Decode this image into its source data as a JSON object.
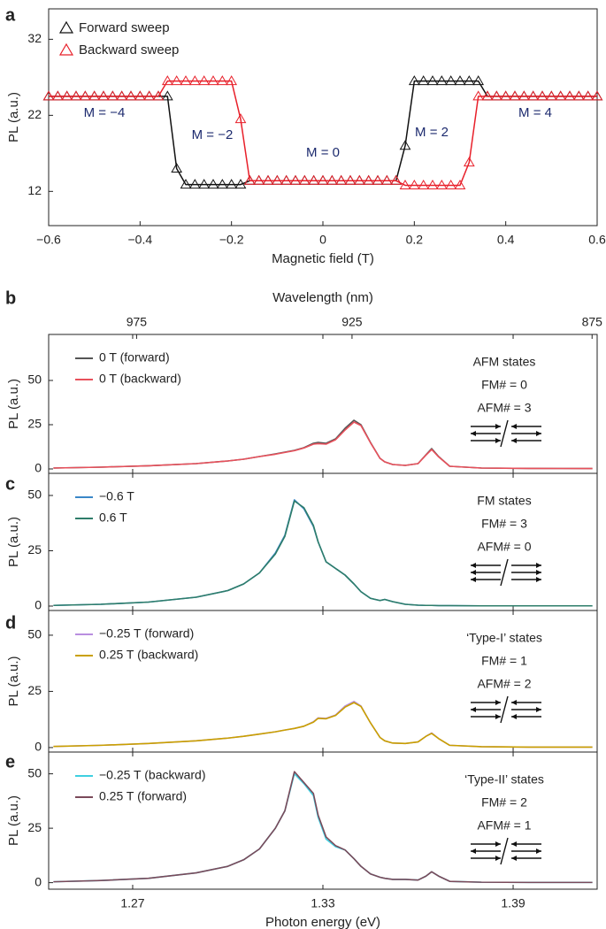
{
  "chart_data": [
    {
      "type": "line",
      "label": "a",
      "markers": "triangle",
      "xlabel": "Magnetic field (T)",
      "ylabel": "PL (a.u.)",
      "xlim": [
        -0.6,
        0.6
      ],
      "ylim": [
        7.5,
        36
      ],
      "xticks": [
        {
          "value": -0.6,
          "label": "−0.6"
        },
        {
          "value": -0.4,
          "label": "−0.4"
        },
        {
          "value": -0.2,
          "label": "−0.2"
        },
        0,
        0.2,
        0.4,
        0.6
      ],
      "yticks": [
        12,
        22,
        32
      ],
      "annotations": [
        "M = −4",
        "M = −2",
        "M = 0",
        "M = 2",
        "M = 4"
      ],
      "x": [
        -0.6,
        -0.58,
        -0.56,
        -0.54,
        -0.52,
        -0.5,
        -0.48,
        -0.46,
        -0.44,
        -0.42,
        -0.4,
        -0.38,
        -0.36,
        -0.34,
        -0.32,
        -0.3,
        -0.28,
        -0.26,
        -0.24,
        -0.22,
        -0.2,
        -0.18,
        -0.16,
        -0.14,
        -0.12,
        -0.1,
        -0.08,
        -0.06,
        -0.04,
        -0.02,
        0,
        0.02,
        0.04,
        0.06,
        0.08,
        0.1,
        0.12,
        0.14,
        0.16,
        0.18,
        0.2,
        0.22,
        0.24,
        0.26,
        0.28,
        0.3,
        0.32,
        0.34,
        0.36,
        0.38,
        0.4,
        0.42,
        0.44,
        0.46,
        0.48,
        0.5,
        0.52,
        0.54,
        0.56,
        0.58,
        0.6
      ],
      "series": [
        {
          "name": "Forward sweep",
          "color": "#111111",
          "values": [
            24.5,
            24.5,
            24.5,
            24.5,
            24.5,
            24.5,
            24.5,
            24.5,
            24.5,
            24.5,
            24.5,
            24.5,
            24.5,
            24.5,
            15,
            12.9,
            12.9,
            12.9,
            12.9,
            12.9,
            12.9,
            12.9,
            13.4,
            13.4,
            13.4,
            13.4,
            13.4,
            13.4,
            13.4,
            13.4,
            13.4,
            13.4,
            13.4,
            13.4,
            13.4,
            13.4,
            13.4,
            13.4,
            13.4,
            18,
            26.5,
            26.5,
            26.5,
            26.5,
            26.5,
            26.5,
            26.5,
            26.5,
            24.5,
            24.5,
            24.5,
            24.5,
            24.5,
            24.5,
            24.5,
            24.5,
            24.5,
            24.5,
            24.5,
            24.5,
            24.5
          ]
        },
        {
          "name": "Backward sweep",
          "color": "#e8202a",
          "values": [
            24.5,
            24.5,
            24.5,
            24.5,
            24.5,
            24.5,
            24.5,
            24.5,
            24.5,
            24.5,
            24.5,
            24.5,
            24.5,
            26.5,
            26.5,
            26.5,
            26.5,
            26.5,
            26.5,
            26.5,
            26.5,
            21.5,
            13.4,
            13.4,
            13.4,
            13.4,
            13.4,
            13.4,
            13.4,
            13.4,
            13.4,
            13.4,
            13.4,
            13.4,
            13.4,
            13.4,
            13.4,
            13.4,
            13.4,
            12.8,
            12.8,
            12.8,
            12.8,
            12.8,
            12.8,
            12.8,
            15.8,
            24.5,
            24.5,
            24.5,
            24.5,
            24.5,
            24.5,
            24.5,
            24.5,
            24.5,
            24.5,
            24.5,
            24.5,
            24.5,
            24.5
          ]
        }
      ]
    },
    {
      "type": "line",
      "label": "b",
      "ylabel": "PL (a.u.)",
      "x2label": "Wavelength (nm)",
      "x2lim": [
        997,
        874
      ],
      "x2ticks": [
        975,
        925,
        875
      ],
      "xlim": [
        1.2435,
        1.4165
      ],
      "ylim": [
        -2.5,
        76
      ],
      "yticks": [
        0,
        25,
        50
      ],
      "notes": [
        "AFM states",
        "FM# = 0",
        "AFM# = 3"
      ],
      "x": [
        1.245,
        1.26,
        1.275,
        1.29,
        1.3,
        1.305,
        1.31,
        1.315,
        1.318,
        1.321,
        1.324,
        1.327,
        1.3285,
        1.331,
        1.334,
        1.337,
        1.3398,
        1.342,
        1.345,
        1.348,
        1.3495,
        1.352,
        1.356,
        1.36,
        1.3625,
        1.3643,
        1.3665,
        1.37,
        1.38,
        1.395,
        1.415
      ],
      "series": [
        {
          "name": "0 T (forward)",
          "color": "#555555",
          "values": [
            0.5,
            1,
            1.8,
            3,
            4.5,
            5.5,
            7,
            8.5,
            9.5,
            10.5,
            12,
            14.5,
            15,
            14.5,
            17,
            23,
            27.5,
            25,
            15,
            6,
            4,
            2.5,
            2,
            3,
            8,
            11.5,
            7,
            1.5,
            0.5,
            0.3,
            0.2
          ]
        },
        {
          "name": "0 T (backward)",
          "color": "#e8505b",
          "values": [
            0.5,
            1,
            1.8,
            3,
            4.5,
            5.5,
            7,
            8.3,
            9.3,
            10.3,
            11.8,
            14,
            14.3,
            14,
            16.5,
            22,
            26.5,
            24.5,
            14.8,
            6,
            4,
            2.5,
            2,
            3,
            7.8,
            11,
            6.8,
            1.5,
            0.5,
            0.3,
            0.2
          ]
        }
      ]
    },
    {
      "type": "line",
      "label": "c",
      "ylabel": "PL (a.u.)",
      "xlim": [
        1.2435,
        1.4165
      ],
      "ylim": [
        -2,
        60
      ],
      "yticks": [
        0,
        25,
        50
      ],
      "notes": [
        "FM states",
        "FM# = 3",
        "AFM# = 0"
      ],
      "x": [
        1.245,
        1.26,
        1.275,
        1.29,
        1.3,
        1.305,
        1.31,
        1.315,
        1.318,
        1.321,
        1.324,
        1.327,
        1.3285,
        1.331,
        1.334,
        1.337,
        1.3398,
        1.342,
        1.345,
        1.348,
        1.3495,
        1.352,
        1.356,
        1.36,
        1.3625,
        1.3643,
        1.3665,
        1.37,
        1.38,
        1.395,
        1.415
      ],
      "series": [
        {
          "name": "−0.6 T",
          "color": "#3a87c8",
          "values": [
            0.3,
            0.8,
            1.8,
            4,
            7,
            10,
            15,
            24,
            32,
            48,
            44,
            36,
            29,
            20,
            17,
            14,
            10,
            6.5,
            3.5,
            2.5,
            3,
            2,
            0.8,
            0.4,
            0.3,
            0.3,
            0.2,
            0.2,
            0.1,
            0.1,
            0.1
          ]
        },
        {
          "name": "0.6 T",
          "color": "#2e7d6a",
          "values": [
            0.3,
            0.8,
            1.8,
            4,
            7,
            10,
            15,
            23.5,
            31.5,
            47.5,
            44.5,
            36.5,
            29,
            20,
            17,
            14,
            10,
            6.5,
            3.5,
            2.5,
            3,
            2,
            0.8,
            0.4,
            0.3,
            0.3,
            0.2,
            0.2,
            0.1,
            0.1,
            0.1
          ]
        }
      ]
    },
    {
      "type": "line",
      "label": "d",
      "ylabel": "PL (a.u.)",
      "xlim": [
        1.2435,
        1.4165
      ],
      "ylim": [
        -2,
        61
      ],
      "yticks": [
        0,
        25,
        50
      ],
      "notes": [
        "‘Type-I’ states",
        "FM# = 1",
        "AFM# = 2"
      ],
      "x": [
        1.245,
        1.26,
        1.275,
        1.29,
        1.3,
        1.305,
        1.31,
        1.315,
        1.318,
        1.321,
        1.324,
        1.327,
        1.3285,
        1.331,
        1.334,
        1.337,
        1.3398,
        1.342,
        1.345,
        1.348,
        1.3495,
        1.352,
        1.356,
        1.36,
        1.3625,
        1.3643,
        1.3665,
        1.37,
        1.38,
        1.395,
        1.415
      ],
      "series": [
        {
          "name": "−0.25 T (forward)",
          "color": "#b98ee0",
          "values": [
            0.5,
            1,
            1.8,
            3,
            4.2,
            5,
            6,
            7,
            7.8,
            8.5,
            9.5,
            11.5,
            13.2,
            13,
            14.5,
            18.5,
            20.5,
            18.5,
            11,
            4.5,
            3,
            2,
            1.8,
            2.5,
            5,
            6.5,
            4,
            1,
            0.4,
            0.2,
            0.2
          ]
        },
        {
          "name": "0.25 T (backward)",
          "color": "#c9a000",
          "values": [
            0.5,
            1,
            1.8,
            3,
            4.2,
            5,
            6,
            7,
            7.8,
            8.5,
            9.5,
            11.3,
            13,
            12.8,
            14.3,
            18,
            20,
            18.3,
            11,
            4.5,
            3,
            2,
            1.8,
            2.5,
            5,
            6.3,
            4,
            1,
            0.4,
            0.2,
            0.2
          ]
        }
      ]
    },
    {
      "type": "line",
      "label": "e",
      "ylabel": "PL (a.u.)",
      "xlabel": "Photon energy (eV)",
      "xlim": [
        1.2435,
        1.4165
      ],
      "ylim": [
        -3,
        60
      ],
      "yticks": [
        0,
        25,
        50
      ],
      "xticks": [
        1.27,
        1.33,
        1.39
      ],
      "notes": [
        "‘Type-II’ states",
        "FM# = 2",
        "AFM# = 1"
      ],
      "x": [
        1.245,
        1.26,
        1.275,
        1.29,
        1.3,
        1.305,
        1.31,
        1.315,
        1.318,
        1.321,
        1.324,
        1.327,
        1.3285,
        1.331,
        1.334,
        1.337,
        1.3398,
        1.342,
        1.345,
        1.348,
        1.3495,
        1.352,
        1.356,
        1.36,
        1.3625,
        1.3643,
        1.3665,
        1.37,
        1.38,
        1.395,
        1.415
      ],
      "series": [
        {
          "name": "−0.25 T (backward)",
          "color": "#3fcfe0",
          "values": [
            0.4,
            1,
            2,
            4.5,
            7.5,
            10.5,
            15.5,
            25,
            33,
            50,
            45.5,
            40,
            30,
            20,
            16.5,
            15,
            11,
            7.5,
            4,
            2.5,
            2,
            1.5,
            1.5,
            1.2,
            3,
            5,
            3,
            0.6,
            0.2,
            0.1,
            0.1
          ]
        },
        {
          "name": "0.25 T (forward)",
          "color": "#7a4a5a",
          "values": [
            0.4,
            1,
            2,
            4.5,
            7.5,
            10.5,
            15.5,
            25,
            33,
            51,
            46,
            41,
            31,
            21,
            17,
            15,
            11,
            7.5,
            4,
            2.5,
            2,
            1.5,
            1.5,
            1.2,
            3,
            5,
            3,
            0.6,
            0.2,
            0.1,
            0.1
          ]
        }
      ]
    }
  ]
}
